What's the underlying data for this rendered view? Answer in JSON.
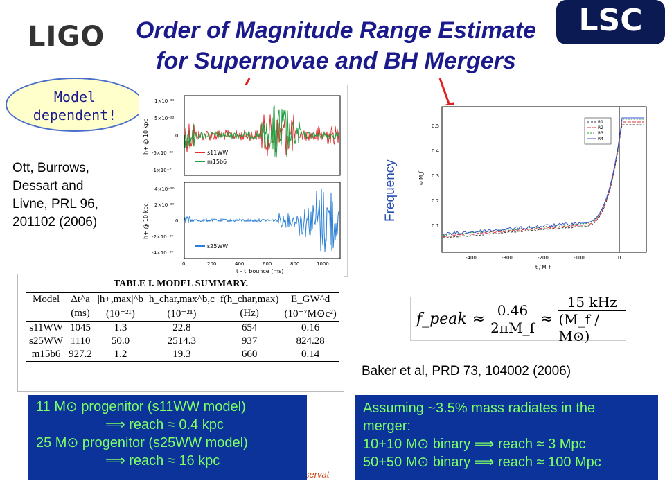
{
  "header": {
    "title_line1": "Order of Magnitude Range Estimate",
    "title_line2": "for Supernovae and BH Mergers",
    "left_logo": "LIGO",
    "right_logo": "LSC"
  },
  "callout": {
    "line1": "Model",
    "line2": "dependent!"
  },
  "citation_left": [
    "Ott, Burrows,",
    "Dessart and",
    "Livne, PRL 96,",
    "201102 (2006)"
  ],
  "citation_right": "Baker et al, PRD 73, 104002 (2006)",
  "frequency_label": "Frequency",
  "top_plot": {
    "ylabel": "h+ @ 10 kpc",
    "yticks": [
      "1×10⁻²¹",
      "5×10⁻²²",
      "0",
      "-5×10⁻²²",
      "-1×10⁻²¹"
    ],
    "legend": [
      "s11WW",
      "m15b6"
    ],
    "colors": {
      "s11WW": "#e03030",
      "m15b6": "#20a040"
    }
  },
  "bottom_plot": {
    "ylabel": "h+ @ 10 kpc",
    "yticks": [
      "4×10⁻²⁰",
      "2×10⁻²⁰",
      "0",
      "-2×10⁻²⁰",
      "-4×10⁻²⁰"
    ],
    "xticks": [
      "0",
      "200",
      "400",
      "600",
      "800",
      "1000"
    ],
    "xlabel": "t - t_bounce (ms)",
    "legend": [
      "s25WW"
    ],
    "colors": {
      "s25WW": "#2a7fd4"
    }
  },
  "right_plot": {
    "ylabel": "ω M_f",
    "xlabel": "t / M_f",
    "xticks": [
      "-400",
      "-300",
      "-200",
      "-100",
      "0"
    ],
    "yticks": [
      "0.1",
      "0.2",
      "0.3",
      "0.4",
      "0.5"
    ],
    "legend": [
      "R1",
      "R2",
      "R3",
      "R4"
    ]
  },
  "table": {
    "title": "TABLE I.  MODEL SUMMARY.",
    "headers": [
      "Model",
      "Δt^a",
      "|h+,max|^b",
      "h_char,max^b,c",
      "f(h_char,max)",
      "E_GW^d"
    ],
    "units": [
      "",
      "(ms)",
      "(10⁻²¹)",
      "(10⁻²¹)",
      "(Hz)",
      "(10⁻⁷M⊙c²)"
    ],
    "rows": [
      [
        "s11WW",
        "1045",
        "1.3",
        "22.8",
        "654",
        "0.16"
      ],
      [
        "s25WW",
        "1110",
        "50.0",
        "2514.3",
        "937",
        "824.28"
      ],
      [
        "m15b6",
        "927.2",
        "1.2",
        "19.3",
        "660",
        "0.14"
      ]
    ]
  },
  "formula": {
    "lhs": "f_peak",
    "approx1": "≈",
    "frac1_num": "0.46",
    "frac1_den": "2πM_f",
    "approx2": "≈",
    "frac2_num": "15 kHz",
    "frac2_den": "(M_f / M⊙)"
  },
  "box_left": [
    "11 M⊙ progenitor (s11WW model)",
    "⟹  reach ≈ 0.4 kpc",
    "25 M⊙ progenitor (s25WW model)",
    "⟹  reach ≈ 16 kpc"
  ],
  "box_right": [
    "Assuming ~3.5% mass radiates in the",
    "merger:",
    "10+10 M⊙ binary ⟹  reach ≈ 3 Mpc",
    "50+50 M⊙ binary ⟹  reach ≈ 100 Mpc"
  ],
  "footer_fragment": "servat"
}
